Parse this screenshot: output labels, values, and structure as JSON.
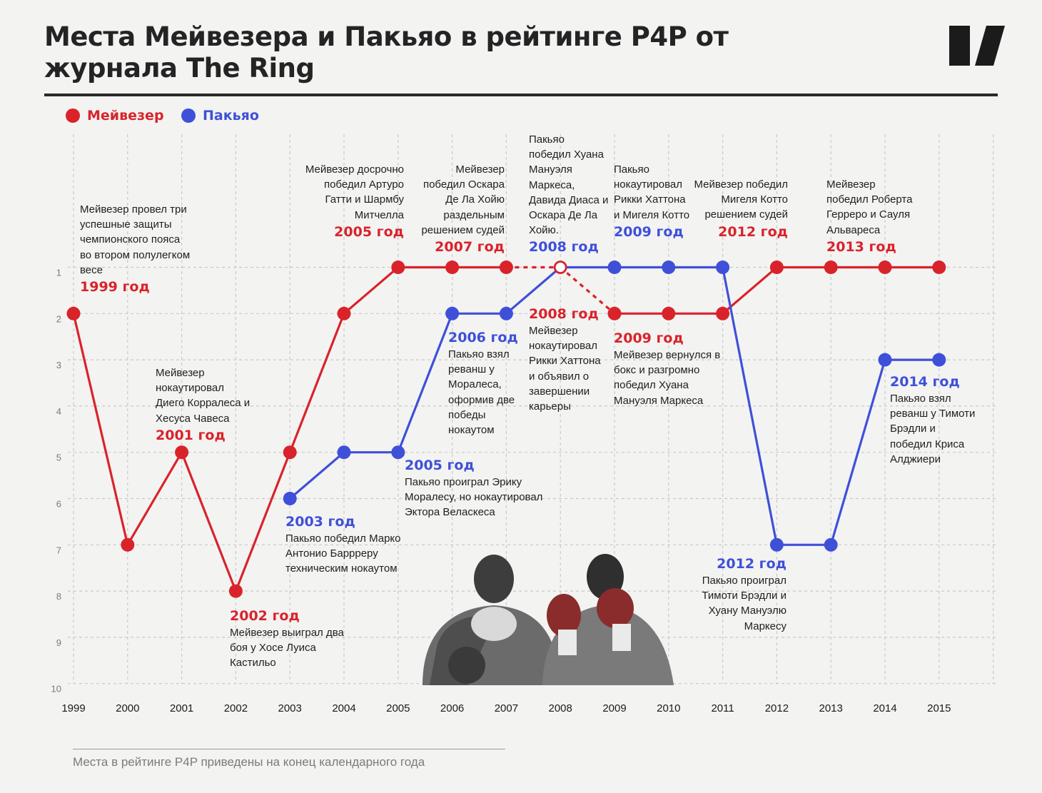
{
  "title": "Места Мейвезера и Пакьяо в рейтинге P4P от журнала The Ring",
  "legend": [
    {
      "name": "Мейвезер",
      "color": "#d9232a"
    },
    {
      "name": "Пакьяо",
      "color": "#3f50d8"
    }
  ],
  "colors": {
    "mayweather": "#d9232a",
    "pacquiao": "#3f50d8",
    "grid": "#c9c9c9",
    "text": "#1b1b1b"
  },
  "logo_icon": "publisher-logo",
  "photo_icon": "boxers-photo",
  "chart_data": {
    "type": "line",
    "x": [
      1999,
      2000,
      2001,
      2002,
      2003,
      2004,
      2005,
      2006,
      2007,
      2008,
      2009,
      2010,
      2011,
      2012,
      2013,
      2014,
      2015
    ],
    "x_ticks": [
      "1999",
      "2000",
      "2001",
      "2002",
      "2003",
      "2004",
      "2005",
      "2006",
      "2007",
      "2008",
      "2009",
      "2010",
      "2011",
      "2012",
      "2013",
      "2014",
      "2015"
    ],
    "y_ticks": [
      "1",
      "2",
      "3",
      "4",
      "5",
      "6",
      "7",
      "8",
      "9",
      "10"
    ],
    "ylim": [
      1,
      10
    ],
    "y_inverted": true,
    "grid": "dashed",
    "legend_position": "top-left",
    "series": [
      {
        "name": "Мейвезер",
        "color": "#d9232a",
        "segments": [
          {
            "style": "solid",
            "points": [
              [
                1999,
                2
              ],
              [
                2000,
                7
              ],
              [
                2001,
                5
              ],
              [
                2002,
                8
              ],
              [
                2003,
                5
              ],
              [
                2004,
                2
              ],
              [
                2005,
                1
              ],
              [
                2006,
                1
              ],
              [
                2007,
                1
              ]
            ]
          },
          {
            "style": "dashed",
            "points": [
              [
                2007,
                1
              ],
              [
                2008,
                1
              ]
            ]
          },
          {
            "style": "dashed",
            "points": [
              [
                2008,
                1
              ],
              [
                2009,
                2
              ]
            ]
          },
          {
            "style": "solid",
            "points": [
              [
                2009,
                2
              ],
              [
                2010,
                2
              ],
              [
                2011,
                2
              ],
              [
                2012,
                1
              ],
              [
                2013,
                1
              ],
              [
                2014,
                1
              ],
              [
                2015,
                1
              ]
            ]
          }
        ],
        "markers": [
          {
            "x": 1999,
            "y": 2
          },
          {
            "x": 2000,
            "y": 7
          },
          {
            "x": 2001,
            "y": 5
          },
          {
            "x": 2002,
            "y": 8
          },
          {
            "x": 2003,
            "y": 5
          },
          {
            "x": 2004,
            "y": 2
          },
          {
            "x": 2005,
            "y": 1
          },
          {
            "x": 2006,
            "y": 1
          },
          {
            "x": 2007,
            "y": 1
          },
          {
            "x": 2008,
            "y": 1,
            "hollow": true
          },
          {
            "x": 2009,
            "y": 2
          },
          {
            "x": 2010,
            "y": 2
          },
          {
            "x": 2011,
            "y": 2
          },
          {
            "x": 2012,
            "y": 1
          },
          {
            "x": 2013,
            "y": 1
          },
          {
            "x": 2014,
            "y": 1
          },
          {
            "x": 2015,
            "y": 1
          }
        ]
      },
      {
        "name": "Пакьяо",
        "color": "#3f50d8",
        "segments": [
          {
            "style": "solid",
            "points": [
              [
                2003,
                6
              ],
              [
                2004,
                5
              ],
              [
                2005,
                5
              ],
              [
                2006,
                2
              ],
              [
                2007,
                2
              ],
              [
                2008,
                1
              ],
              [
                2009,
                1
              ],
              [
                2010,
                1
              ],
              [
                2011,
                1
              ],
              [
                2012,
                7
              ],
              [
                2013,
                7
              ],
              [
                2014,
                3
              ],
              [
                2015,
                3
              ]
            ]
          }
        ],
        "markers": [
          {
            "x": 2003,
            "y": 6
          },
          {
            "x": 2004,
            "y": 5
          },
          {
            "x": 2005,
            "y": 5
          },
          {
            "x": 2006,
            "y": 2
          },
          {
            "x": 2007,
            "y": 2
          },
          {
            "x": 2009,
            "y": 1
          },
          {
            "x": 2010,
            "y": 1
          },
          {
            "x": 2011,
            "y": 1
          },
          {
            "x": 2012,
            "y": 7
          },
          {
            "x": 2013,
            "y": 7
          },
          {
            "x": 2014,
            "y": 3
          },
          {
            "x": 2015,
            "y": 3
          }
        ]
      }
    ],
    "annotations": [
      {
        "year": "1999 год",
        "color": "red",
        "text": "Мейвезер провел три успешные защиты чемпионского пояса во втором полулегком весе"
      },
      {
        "year": "2001 год",
        "color": "red",
        "text": "Мейвезер нокаутировал Диего Корралеса и Хесуса Чавеса"
      },
      {
        "year": "2002 год",
        "color": "red",
        "text": "Мейвезер выиграл два боя у Хосе Луиса Кастильо"
      },
      {
        "year": "2003 год",
        "color": "blue",
        "text": "Пакьяо победил Марко Антонио Баррреру техническим нокаутом"
      },
      {
        "year": "2005 год",
        "color": "red",
        "text": "Мейвезер досрочно победил Артуро Гатти и Шармбу Митчелла"
      },
      {
        "year": "2005 год",
        "color": "blue",
        "text": "Пакьяо проиграл Эрику Моралесу, но нокаутировал Эктора Веласкеса"
      },
      {
        "year": "2006 год",
        "color": "blue",
        "text": "Пакьяо взял реванш у Моралеса, оформив две победы нокаутом"
      },
      {
        "year": "2007 год",
        "color": "red",
        "text": "Мейвезер победил Оскара Де Ла Хойю раздельным решением судей"
      },
      {
        "year": "2008 год",
        "color": "blue",
        "text": "Пакьяо победил Хуана Мануэля Маркеса, Давида Диаса и Оскара Де Ла Хойю."
      },
      {
        "year": "2008 год",
        "color": "red",
        "text": "Мейвезер нокаутировал Рикки Хаттона и объявил о завершении карьеры"
      },
      {
        "year": "2009 год",
        "color": "blue",
        "text": "Пакьяо нокаутировал Рикки Хаттона и Мигеля Котто"
      },
      {
        "year": "2009 год",
        "color": "red",
        "text": "Мейвезер вернулся в бокс и разгромно победил Хуана Мануэля Маркеса"
      },
      {
        "year": "2012 год",
        "color": "red",
        "text": "Мейвезер победил Мигеля Котто решением судей"
      },
      {
        "year": "2012 год",
        "color": "blue",
        "text": "Пакьяо проиграл Тимоти Брэдли и Хуану Мануэлю Маркесу"
      },
      {
        "year": "2013 год",
        "color": "red",
        "text": "Мейвезер победил Роберта Герреро и Сауля Альвареса"
      },
      {
        "year": "2014 год",
        "color": "blue",
        "text": "Пакьяо взял реванш у Тимоти Брэдли и победил Криса Алджиери"
      }
    ]
  },
  "footnote": "Места в рейтинге P4P приведены на конец календарного года"
}
